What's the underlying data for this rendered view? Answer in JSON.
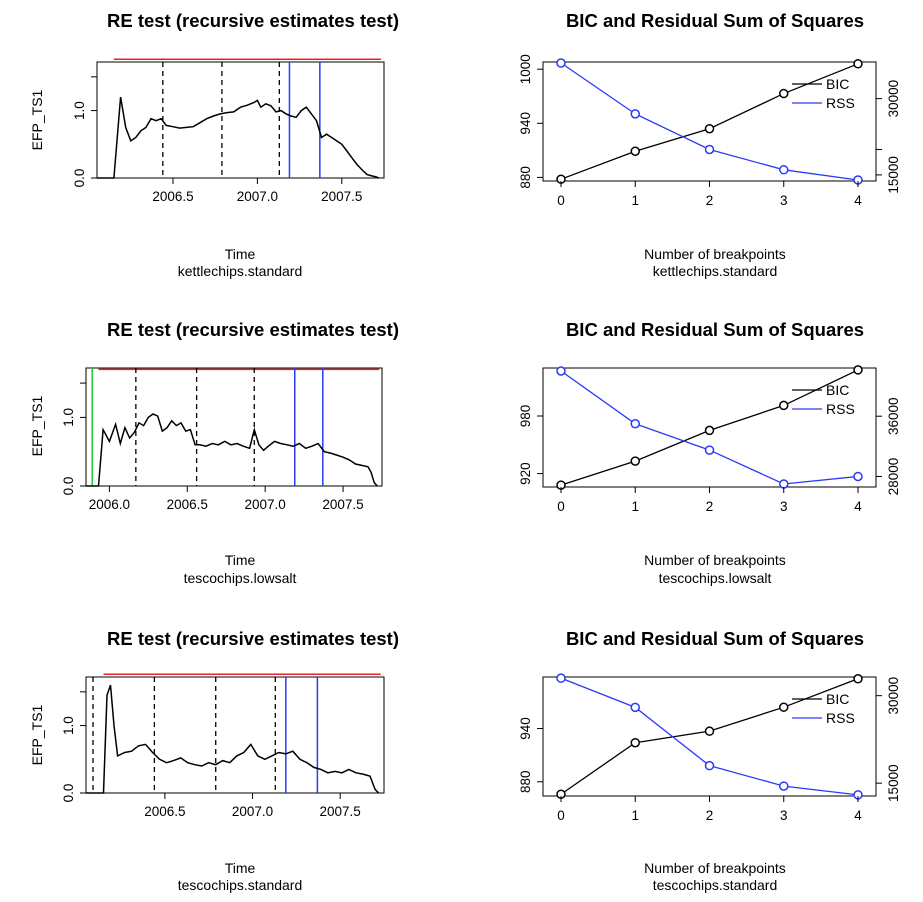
{
  "colors": {
    "red": "#e8202a",
    "blue": "#2a3af5",
    "green": "#22c832",
    "black": "#000000"
  },
  "chart_data": [
    {
      "type": "line",
      "title": "RE test (recursive estimates test)",
      "xlabel": "Time",
      "subtitle": "kettlechips.standard",
      "ylabel": "EFP_TS1",
      "xlim": [
        2006.05,
        2007.75
      ],
      "ylim": [
        0,
        1.72
      ],
      "xticks": [
        2006.5,
        2007.0,
        2007.5
      ],
      "xtick_labels": [
        "2006.5",
        "2007.0",
        "2007.5"
      ],
      "yticks": [
        0,
        1,
        1.5
      ],
      "ytick_labels": [
        "0.0",
        "1.0",
        ""
      ],
      "critical_value": 1.76,
      "vlines_dashed": [
        2006.44,
        2006.79,
        2007.13
      ],
      "vlines_blue": [
        2007.19,
        2007.37
      ],
      "vlines_green": [],
      "series": [
        {
          "x": [
            2006.05,
            2006.15,
            2006.19,
            2006.22,
            2006.25,
            2006.28,
            2006.31,
            2006.34,
            2006.37,
            2006.4,
            2006.43,
            2006.46,
            2006.5,
            2006.54,
            2006.58,
            2006.62,
            2006.66,
            2006.7,
            2006.74,
            2006.78,
            2006.82,
            2006.86,
            2006.9,
            2006.94,
            2006.98,
            2007.0,
            2007.02,
            2007.05,
            2007.08,
            2007.11,
            2007.14,
            2007.17,
            2007.2,
            2007.23,
            2007.26,
            2007.29,
            2007.32,
            2007.35,
            2007.38,
            2007.41,
            2007.44,
            2007.47,
            2007.5,
            2007.53,
            2007.56,
            2007.59,
            2007.62,
            2007.65,
            2007.68,
            2007.7,
            2007.72
          ],
          "y": [
            0,
            0,
            1.2,
            0.75,
            0.55,
            0.6,
            0.7,
            0.75,
            0.88,
            0.85,
            0.88,
            0.78,
            0.76,
            0.74,
            0.75,
            0.76,
            0.82,
            0.88,
            0.92,
            0.95,
            0.97,
            0.98,
            1.05,
            1.08,
            1.12,
            1.15,
            1.05,
            1.1,
            1.07,
            0.98,
            1.0,
            0.95,
            0.92,
            0.9,
            1.0,
            1.05,
            0.95,
            0.85,
            0.6,
            0.65,
            0.6,
            0.55,
            0.5,
            0.4,
            0.3,
            0.2,
            0.12,
            0.05,
            0.03,
            0.02,
            0
          ]
        }
      ]
    },
    {
      "type": "line",
      "title": "BIC and Residual Sum of Squares",
      "xlabel": "Number of breakpoints",
      "subtitle": "kettlechips.standard",
      "x": [
        0,
        1,
        2,
        3,
        4
      ],
      "series": [
        {
          "name": "BIC",
          "values": [
            878,
            909,
            934,
            973,
            1006
          ]
        },
        {
          "name": "RSS",
          "values": [
            37000,
            27000,
            20000,
            16000,
            14000
          ]
        }
      ],
      "left_axis": {
        "lim": [
          876,
          1008
        ],
        "ticks": [
          880,
          940,
          1000
        ],
        "labels": [
          "880",
          "940",
          "1000"
        ]
      },
      "right_axis": {
        "lim": [
          13800,
          37200
        ],
        "ticks": [
          15000,
          20000,
          30000
        ],
        "labels": [
          "15000",
          "",
          "30000"
        ]
      },
      "legend": "top-right"
    },
    {
      "type": "line",
      "title": "RE test (recursive estimates test)",
      "xlabel": "Time",
      "subtitle": "tescochips.lowsalt",
      "ylabel": "EFP_TS1",
      "xlim": [
        2005.85,
        2007.75
      ],
      "ylim": [
        0,
        1.72
      ],
      "xticks": [
        2006.0,
        2006.5,
        2007.0,
        2007.5
      ],
      "xtick_labels": [
        "2006.0",
        "2006.5",
        "2007.0",
        "2007.5"
      ],
      "yticks": [
        0,
        1,
        1.5
      ],
      "ytick_labels": [
        "0.0",
        "1.0",
        ""
      ],
      "critical_value": 1.7,
      "vlines_dashed": [
        2006.17,
        2006.56,
        2006.93
      ],
      "vlines_blue": [
        2007.19,
        2007.37
      ],
      "vlines_green": [
        2005.89
      ],
      "series": [
        {
          "x": [
            2005.85,
            2005.93,
            2005.96,
            2006.0,
            2006.04,
            2006.07,
            2006.1,
            2006.13,
            2006.16,
            2006.19,
            2006.22,
            2006.25,
            2006.28,
            2006.31,
            2006.34,
            2006.37,
            2006.4,
            2006.43,
            2006.46,
            2006.49,
            2006.52,
            2006.55,
            2006.58,
            2006.62,
            2006.66,
            2006.7,
            2006.74,
            2006.78,
            2006.82,
            2006.86,
            2006.9,
            2006.93,
            2006.96,
            2006.99,
            2007.02,
            2007.06,
            2007.1,
            2007.14,
            2007.18,
            2007.22,
            2007.26,
            2007.3,
            2007.34,
            2007.38,
            2007.42,
            2007.46,
            2007.5,
            2007.54,
            2007.58,
            2007.62,
            2007.66,
            2007.68,
            2007.7,
            2007.72
          ],
          "y": [
            0,
            0,
            0.82,
            0.65,
            0.9,
            0.62,
            0.85,
            0.7,
            0.78,
            0.92,
            0.88,
            1.0,
            1.05,
            1.02,
            0.8,
            0.85,
            0.95,
            0.88,
            0.92,
            0.8,
            0.82,
            0.6,
            0.6,
            0.58,
            0.62,
            0.6,
            0.65,
            0.6,
            0.62,
            0.58,
            0.55,
            0.82,
            0.6,
            0.52,
            0.58,
            0.65,
            0.62,
            0.6,
            0.58,
            0.62,
            0.55,
            0.58,
            0.62,
            0.5,
            0.48,
            0.45,
            0.42,
            0.38,
            0.32,
            0.3,
            0.28,
            0.2,
            0.05,
            0
          ]
        }
      ]
    },
    {
      "type": "line",
      "title": "BIC and Residual Sum of Squares",
      "xlabel": "Number of breakpoints",
      "subtitle": "tescochips.lowsalt",
      "x": [
        0,
        1,
        2,
        3,
        4
      ],
      "series": [
        {
          "name": "BIC",
          "values": [
            908,
            933,
            965,
            991,
            1028
          ]
        },
        {
          "name": "RSS",
          "values": [
            42000,
            35000,
            31500,
            27000,
            28000
          ]
        }
      ],
      "left_axis": {
        "lim": [
          906,
          1030
        ],
        "ticks": [
          920,
          980
        ],
        "labels": [
          "920",
          "980"
        ]
      },
      "right_axis": {
        "lim": [
          26600,
          42400
        ],
        "ticks": [
          28000,
          36000
        ],
        "labels": [
          "28000",
          "36000"
        ]
      },
      "legend": "top-right"
    },
    {
      "type": "line",
      "title": "RE test (recursive estimates test)",
      "xlabel": "Time",
      "subtitle": "tescochips.standard",
      "ylabel": "EFP_TS1",
      "xlim": [
        2006.05,
        2007.75
      ],
      "ylim": [
        0,
        1.72
      ],
      "xticks": [
        2006.5,
        2007.0,
        2007.5
      ],
      "xtick_labels": [
        "2006.5",
        "2007.0",
        "2007.5"
      ],
      "yticks": [
        0,
        1,
        1.5
      ],
      "ytick_labels": [
        "0.0",
        "1.0",
        ""
      ],
      "critical_value": 1.76,
      "vlines_dashed": [
        2006.09,
        2006.44,
        2006.79,
        2007.13
      ],
      "vlines_blue": [
        2007.19,
        2007.37
      ],
      "vlines_green": [],
      "series": [
        {
          "x": [
            2006.05,
            2006.15,
            2006.17,
            2006.19,
            2006.21,
            2006.23,
            2006.27,
            2006.31,
            2006.35,
            2006.39,
            2006.43,
            2006.47,
            2006.51,
            2006.55,
            2006.59,
            2006.63,
            2006.67,
            2006.71,
            2006.75,
            2006.79,
            2006.83,
            2006.87,
            2006.91,
            2006.95,
            2006.99,
            2007.03,
            2007.07,
            2007.11,
            2007.15,
            2007.19,
            2007.23,
            2007.27,
            2007.31,
            2007.35,
            2007.39,
            2007.43,
            2007.47,
            2007.51,
            2007.55,
            2007.59,
            2007.63,
            2007.67,
            2007.7,
            2007.72
          ],
          "y": [
            0,
            0,
            1.45,
            1.6,
            1.0,
            0.55,
            0.6,
            0.62,
            0.7,
            0.72,
            0.6,
            0.5,
            0.45,
            0.48,
            0.52,
            0.45,
            0.42,
            0.4,
            0.45,
            0.42,
            0.48,
            0.45,
            0.55,
            0.6,
            0.72,
            0.55,
            0.5,
            0.55,
            0.6,
            0.58,
            0.62,
            0.5,
            0.45,
            0.38,
            0.35,
            0.3,
            0.32,
            0.3,
            0.35,
            0.3,
            0.28,
            0.25,
            0.05,
            0
          ]
        }
      ]
    },
    {
      "type": "line",
      "title": "BIC and Residual Sum of Squares",
      "xlabel": "Number of breakpoints",
      "subtitle": "tescochips.standard",
      "x": [
        0,
        1,
        2,
        3,
        4
      ],
      "series": [
        {
          "name": "BIC",
          "values": [
            866,
            924,
            937,
            964,
            996
          ]
        },
        {
          "name": "RSS",
          "values": [
            33000,
            28000,
            18000,
            14500,
            13000
          ]
        }
      ],
      "left_axis": {
        "lim": [
          864,
          998
        ],
        "ticks": [
          880,
          940
        ],
        "labels": [
          "880",
          "940"
        ]
      },
      "right_axis": {
        "lim": [
          12800,
          33200
        ],
        "ticks": [
          15000,
          30000
        ],
        "labels": [
          "15000",
          "30000"
        ]
      },
      "legend": "top-right"
    }
  ]
}
